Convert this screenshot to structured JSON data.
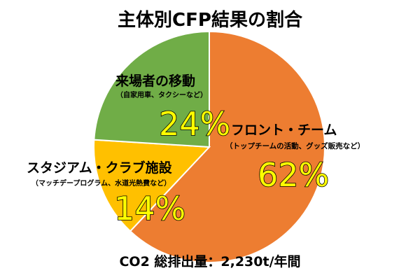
{
  "chart_data": {
    "type": "pie",
    "title": "主体別CFP結果の割合",
    "slices": [
      {
        "name": "フロント・チーム",
        "detail": "（トップチームの活動、グッズ販売など）",
        "value": 62,
        "label": "62%",
        "color": "#ED7D31"
      },
      {
        "name": "スタジアム・クラブ施設",
        "detail": "（マッチデープログラム、水道光熱費など）",
        "value": 14,
        "label": "14%",
        "color": "#FFC000"
      },
      {
        "name": "来場者の移動",
        "detail": "（自家用車、タクシーなど）",
        "value": 24,
        "label": "24%",
        "color": "#70AD47"
      }
    ],
    "total_label": "CO2 総排出量：2,230t/年間",
    "legend": "none"
  }
}
